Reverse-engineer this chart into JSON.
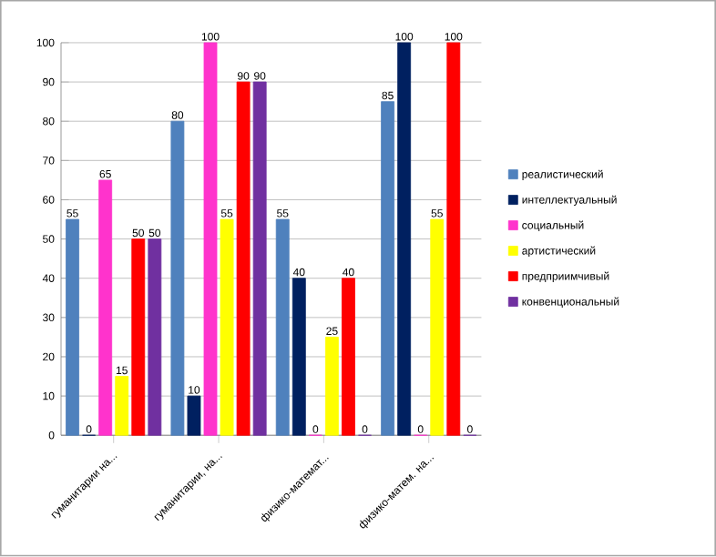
{
  "chart_data": {
    "type": "bar",
    "categories": [
      "гуманитарии на...",
      "гуманитарии, на...",
      "физико-математ...",
      "физико-матем. на..."
    ],
    "series": [
      {
        "name": "реалистический",
        "color": "#4f81bd",
        "values": [
          55,
          80,
          55,
          85
        ]
      },
      {
        "name": "интеллектуальный",
        "color": "#002060",
        "values": [
          0,
          10,
          40,
          100
        ]
      },
      {
        "name": "социальный",
        "color": "#ff33cc",
        "values": [
          65,
          100,
          0,
          0
        ]
      },
      {
        "name": "артистический",
        "color": "#ffff00",
        "values": [
          15,
          55,
          25,
          55
        ]
      },
      {
        "name": "предприимчивый",
        "color": "#ff0000",
        "values": [
          50,
          90,
          40,
          100
        ]
      },
      {
        "name": "конвенциональный",
        "color": "#7030a0",
        "values": [
          50,
          90,
          0,
          0
        ]
      }
    ],
    "ylim": [
      0,
      100
    ],
    "yticks": [
      0,
      10,
      20,
      30,
      40,
      50,
      60,
      70,
      80,
      90,
      100
    ],
    "grid": "y",
    "legend": "right",
    "data_labels": true
  }
}
